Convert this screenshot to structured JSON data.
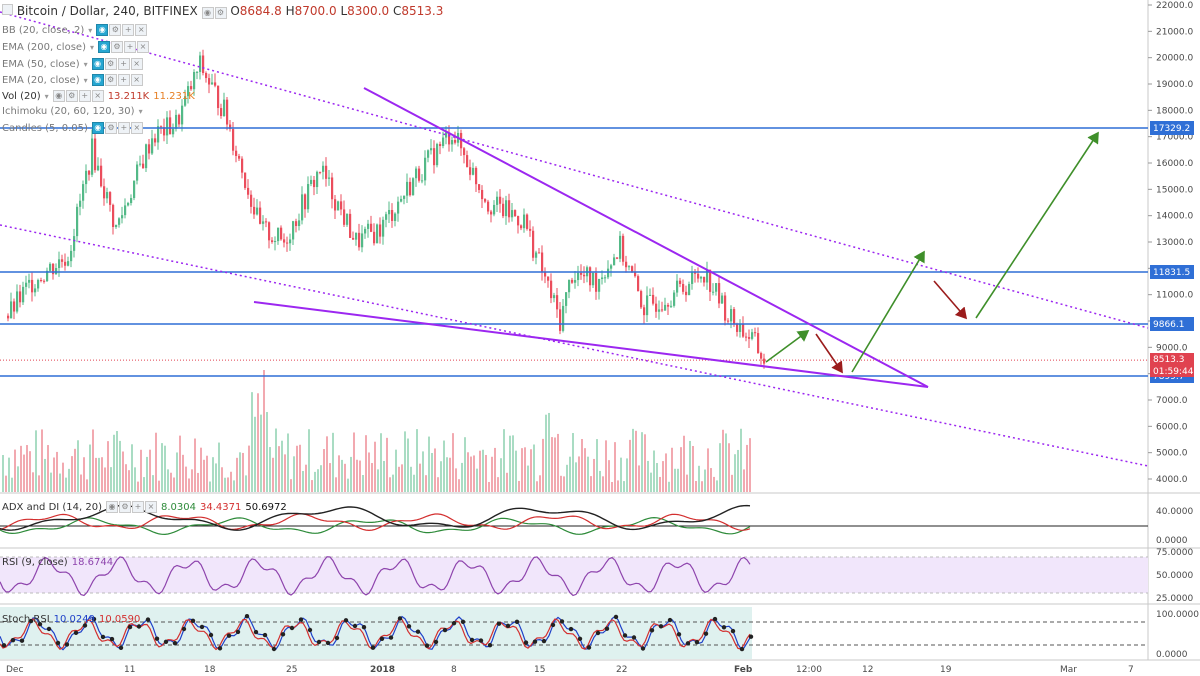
{
  "header": {
    "symbol": "Bitcoin / Dollar, 240, BITFINEX",
    "open_label": "O",
    "open": "8684.8",
    "high_label": "H",
    "high": "8700.0",
    "low_label": "L",
    "low": "8300.0",
    "close_label": "C",
    "close": "8513.3"
  },
  "indicators": [
    {
      "label": "BB (20, close, 2)"
    },
    {
      "label": "EMA (200, close)"
    },
    {
      "label": "EMA (50, close)"
    },
    {
      "label": "EMA (20, close)"
    },
    {
      "label": "Vol (20)",
      "v1": "13.211K",
      "v2": "11.231K"
    },
    {
      "label": "Ichimoku (20, 60, 120, 30)"
    },
    {
      "label": "Candles (5, 0.05)"
    }
  ],
  "colors": {
    "up": "#53b987",
    "down": "#eb4d5c",
    "hline": "#2f6fd6",
    "purple": "#9c27f0",
    "arrow_up": "#3f8f2a",
    "arrow_down": "#9b1c1c",
    "rsi_band": "#f1e6fb"
  },
  "chart_data": [
    {
      "type": "candlestick",
      "title": "Bitcoin / Dollar, 240, BITFINEX",
      "ylim": [
        3300,
        22200
      ],
      "y_ticks": [
        "22000.0",
        "21000.0",
        "20000.0",
        "19000.0",
        "18000.0",
        "17000.0",
        "16000.0",
        "15000.0",
        "14000.0",
        "13000.0",
        "12000.0",
        "11000.0",
        "10000.0",
        "9000.0",
        "8000.0",
        "7000.0",
        "6000.0",
        "5000.0",
        "4000.0"
      ],
      "x_ticks": [
        "Dec",
        "11",
        "18",
        "25",
        "2018",
        "8",
        "15",
        "22",
        "Feb",
        "12:00",
        "12",
        "19",
        "Mar",
        "7"
      ],
      "price_path": [
        {
          "x": "Dec 1",
          "y": 10200
        },
        {
          "x": "Dec 3",
          "y": 11500
        },
        {
          "x": "Dec 6",
          "y": 12500
        },
        {
          "x": "Dec 8",
          "y": 16500
        },
        {
          "x": "Dec 10",
          "y": 13500
        },
        {
          "x": "Dec 13",
          "y": 17000
        },
        {
          "x": "Dec 15",
          "y": 17500
        },
        {
          "x": "Dec 17",
          "y": 19700
        },
        {
          "x": "Dec 19",
          "y": 18000
        },
        {
          "x": "Dec 22",
          "y": 13500
        },
        {
          "x": "Dec 24",
          "y": 13000
        },
        {
          "x": "Dec 27",
          "y": 15800
        },
        {
          "x": "Dec 30",
          "y": 13000
        },
        {
          "x": "Jan 1",
          "y": 13500
        },
        {
          "x": "Jan 4",
          "y": 15500
        },
        {
          "x": "Jan 7",
          "y": 17200
        },
        {
          "x": "Jan 10",
          "y": 14500
        },
        {
          "x": "Jan 13",
          "y": 13800
        },
        {
          "x": "Jan 16",
          "y": 10000
        },
        {
          "x": "Jan 17",
          "y": 11800
        },
        {
          "x": "Jan 19",
          "y": 11500
        },
        {
          "x": "Jan 21",
          "y": 12800
        },
        {
          "x": "Jan 23",
          "y": 10500
        },
        {
          "x": "Jan 26",
          "y": 11200
        },
        {
          "x": "Jan 28",
          "y": 11900
        },
        {
          "x": "Jan 30",
          "y": 10200
        },
        {
          "x": "Feb 1",
          "y": 9300
        },
        {
          "x": "Feb 2",
          "y": 8513.3
        }
      ],
      "volume": {
        "label": "Vol (20)",
        "last": "13.211K",
        "ma": "11.231K"
      }
    },
    {
      "type": "line",
      "title": "ADX and DI (14, 20)",
      "series": [
        {
          "name": "+DI",
          "value": "8.0304"
        },
        {
          "name": "-DI",
          "value": "34.4371"
        },
        {
          "name": "ADX",
          "value": "50.6972"
        }
      ],
      "y_ticks": [
        "40.0000",
        "0.0000"
      ]
    },
    {
      "type": "line",
      "title": "RSI (9, close)",
      "series": [
        {
          "name": "RSI",
          "value": "18.6744"
        }
      ],
      "y_ticks": [
        "75.0000",
        "50.0000",
        "25.0000"
      ],
      "band": [
        30,
        70
      ]
    },
    {
      "type": "line",
      "title": "Stoch RSI",
      "series": [
        {
          "name": "K",
          "value": "10.0249"
        },
        {
          "name": "D",
          "value": "10.0590"
        }
      ],
      "y_ticks": [
        "100.0000",
        "0.0000"
      ]
    }
  ],
  "levels": {
    "l17329": "17329.2",
    "l11831": "11831.5",
    "l9866": "9866.1",
    "l7899": "7899.7",
    "last_price": "8513.3",
    "countdown": "01:59:44"
  },
  "adx_panel": {
    "title": "ADX and DI (14, 20)",
    "v1": "8.0304",
    "v2": "34.4371",
    "v3": "50.6972"
  },
  "rsi_panel": {
    "title": "RSI (9, close)",
    "v1": "18.6744"
  },
  "stoch_panel": {
    "title": "Stoch RSI",
    "v1": "10.0249",
    "v2": "10.0590"
  }
}
